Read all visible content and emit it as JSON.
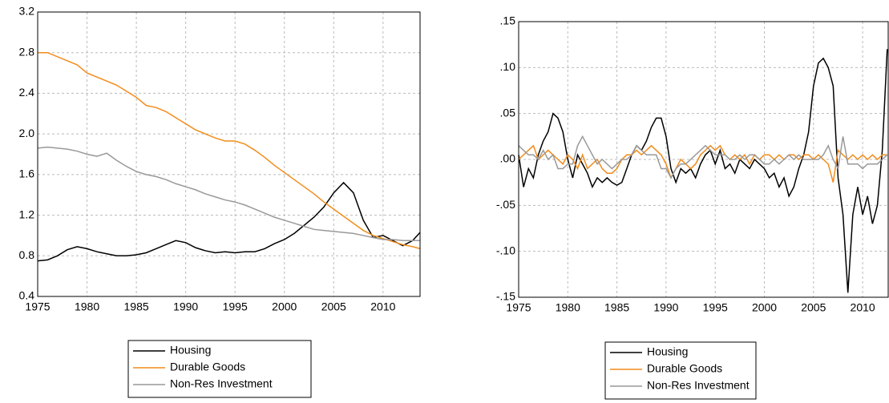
{
  "chart_data": [
    {
      "type": "line",
      "x": [
        1975,
        1976,
        1977,
        1978,
        1979,
        1980,
        1981,
        1982,
        1983,
        1984,
        1985,
        1986,
        1987,
        1988,
        1989,
        1990,
        1991,
        1992,
        1993,
        1994,
        1995,
        1996,
        1997,
        1998,
        1999,
        2000,
        2001,
        2002,
        2003,
        2004,
        2005,
        2006,
        2007,
        2008,
        2009,
        2010,
        2011,
        2012,
        2013,
        2013.75
      ],
      "xlim": [
        1975,
        2013.75
      ],
      "xticks": [
        1975,
        1980,
        1985,
        1990,
        1995,
        2000,
        2005,
        2010
      ],
      "ylim": [
        0.4,
        3.2
      ],
      "yticks": [
        {
          "value": 3.2,
          "label": "3.2"
        },
        {
          "value": 2.8,
          "label": "2.8"
        },
        {
          "value": 2.4,
          "label": "2.4"
        },
        {
          "value": 2,
          "label": "2.0"
        },
        {
          "value": 1.6,
          "label": "1.6"
        },
        {
          "value": 1.2,
          "label": "1.2"
        },
        {
          "value": 0.8,
          "label": "0.8"
        },
        {
          "value": 0.4,
          "label": "0.4"
        }
      ],
      "grid": true,
      "series": [
        {
          "name": "Housing",
          "color": "#000000",
          "values": [
            0.75,
            0.76,
            0.8,
            0.86,
            0.89,
            0.87,
            0.84,
            0.82,
            0.8,
            0.8,
            0.81,
            0.83,
            0.87,
            0.91,
            0.95,
            0.93,
            0.88,
            0.85,
            0.83,
            0.84,
            0.83,
            0.84,
            0.84,
            0.87,
            0.92,
            0.96,
            1.02,
            1.1,
            1.18,
            1.28,
            1.42,
            1.52,
            1.42,
            1.15,
            0.98,
            1.0,
            0.95,
            0.9,
            0.95,
            1.03
          ]
        },
        {
          "name": "Durable Goods",
          "color": "#f28c1c",
          "values": [
            2.8,
            2.8,
            2.76,
            2.72,
            2.68,
            2.6,
            2.56,
            2.52,
            2.48,
            2.42,
            2.36,
            2.28,
            2.26,
            2.22,
            2.16,
            2.1,
            2.04,
            2.0,
            1.96,
            1.93,
            1.93,
            1.9,
            1.84,
            1.77,
            1.69,
            1.62,
            1.55,
            1.48,
            1.41,
            1.33,
            1.26,
            1.19,
            1.12,
            1.05,
            1.0,
            0.97,
            0.94,
            0.91,
            0.89,
            0.87
          ]
        },
        {
          "name": "Non-Res Investment",
          "color": "#999999",
          "values": [
            1.86,
            1.87,
            1.86,
            1.85,
            1.83,
            1.8,
            1.78,
            1.81,
            1.74,
            1.68,
            1.63,
            1.6,
            1.58,
            1.55,
            1.51,
            1.48,
            1.45,
            1.41,
            1.38,
            1.35,
            1.33,
            1.3,
            1.26,
            1.22,
            1.18,
            1.15,
            1.12,
            1.09,
            1.06,
            1.05,
            1.04,
            1.03,
            1.02,
            1.0,
            0.98,
            0.96,
            0.96,
            0.95,
            0.95,
            0.95
          ]
        }
      ]
    },
    {
      "type": "line",
      "x": [
        1975,
        1975.5,
        1976,
        1976.5,
        1977,
        1977.5,
        1978,
        1978.5,
        1979,
        1979.5,
        1980,
        1980.5,
        1981,
        1981.5,
        1982,
        1982.5,
        1983,
        1983.5,
        1984,
        1984.5,
        1985,
        1985.5,
        1986,
        1986.5,
        1987,
        1987.5,
        1988,
        1988.5,
        1989,
        1989.5,
        1990,
        1990.5,
        1991,
        1991.5,
        1992,
        1992.5,
        1993,
        1993.5,
        1994,
        1994.5,
        1995,
        1995.5,
        1996,
        1996.5,
        1997,
        1997.5,
        1998,
        1998.5,
        1999,
        1999.5,
        2000,
        2000.5,
        2001,
        2001.5,
        2002,
        2002.5,
        2003,
        2003.5,
        2004,
        2004.5,
        2005,
        2005.5,
        2006,
        2006.5,
        2007,
        2007.5,
        2008,
        2008.5,
        2009,
        2009.5,
        2010,
        2010.5,
        2011,
        2011.5,
        2012,
        2012.5
      ],
      "xlim": [
        1975,
        2012.6
      ],
      "xticks": [
        1975,
        1980,
        1985,
        1990,
        1995,
        2000,
        2005,
        2010
      ],
      "ylim": [
        -0.15,
        0.15
      ],
      "yticks": [
        {
          "value": 0.15,
          "label": ".15"
        },
        {
          "value": 0.1,
          "label": ".10"
        },
        {
          "value": 0.05,
          "label": ".05"
        },
        {
          "value": 0,
          "label": ".00"
        },
        {
          "value": -0.05,
          "label": "-.05"
        },
        {
          "value": -0.1,
          "label": "-.10"
        },
        {
          "value": -0.15,
          "label": "-.15"
        }
      ],
      "grid": true,
      "series": [
        {
          "name": "Housing",
          "color": "#000000",
          "values": [
            0.005,
            -0.03,
            -0.01,
            -0.02,
            0.005,
            0.02,
            0.03,
            0.05,
            0.045,
            0.03,
            0,
            -0.02,
            0.005,
            -0.005,
            -0.015,
            -0.03,
            -0.02,
            -0.025,
            -0.02,
            -0.025,
            -0.028,
            -0.025,
            -0.01,
            0.005,
            0.015,
            0.01,
            0.02,
            0.035,
            0.045,
            0.045,
            0.025,
            -0.01,
            -0.025,
            -0.01,
            -0.015,
            -0.01,
            -0.02,
            -0.005,
            0.005,
            0.01,
            -0.005,
            0.01,
            -0.01,
            -0.005,
            -0.015,
            0,
            -0.005,
            -0.01,
            0,
            -0.005,
            -0.01,
            -0.02,
            -0.015,
            -0.03,
            -0.02,
            -0.04,
            -0.03,
            -0.01,
            0.005,
            0.03,
            0.08,
            0.105,
            0.11,
            0.1,
            0.08,
            -0.02,
            -0.06,
            -0.145,
            -0.06,
            -0.03,
            -0.06,
            -0.04,
            -0.07,
            -0.05,
            0.01,
            0.12
          ]
        },
        {
          "name": "Durable Goods",
          "color": "#f28c1c",
          "values": [
            0,
            0.005,
            0.01,
            0.015,
            0,
            0.005,
            0.01,
            0.005,
            0,
            -0.005,
            0.005,
            0,
            -0.01,
            0.005,
            -0.01,
            -0.005,
            0,
            -0.01,
            -0.015,
            -0.015,
            -0.01,
            0,
            0.005,
            0.005,
            0.01,
            0.005,
            0.01,
            0.015,
            0.01,
            0.005,
            -0.005,
            -0.02,
            -0.01,
            0,
            -0.005,
            -0.01,
            -0.005,
            0.005,
            0.01,
            0.015,
            0.01,
            0.015,
            0.005,
            0,
            0.005,
            0,
            0.005,
            -0.005,
            0.005,
            0,
            0.005,
            0.005,
            0,
            0.005,
            0,
            0.005,
            0.005,
            0,
            0.005,
            0.005,
            0,
            0.005,
            0,
            -0.005,
            -0.025,
            0.01,
            0.005,
            0,
            0.005,
            0,
            0.005,
            0,
            0.005,
            0,
            0.005,
            0.005
          ]
        },
        {
          "name": "Non-Res Investment",
          "color": "#999999",
          "values": [
            0.015,
            0.01,
            0.005,
            0.005,
            0,
            0.01,
            0,
            0.005,
            -0.01,
            -0.01,
            -0.005,
            -0.005,
            0.015,
            0.025,
            0.015,
            0.005,
            -0.005,
            0,
            -0.005,
            -0.01,
            -0.005,
            0,
            0,
            0.005,
            0.015,
            0.01,
            0.005,
            0.005,
            0.005,
            -0.01,
            -0.01,
            -0.02,
            -0.01,
            -0.005,
            -0.005,
            0,
            0.005,
            0.01,
            0.015,
            0.01,
            0.005,
            0.005,
            0.005,
            0,
            0,
            0.005,
            0,
            0.005,
            0.005,
            0,
            -0.005,
            -0.005,
            0,
            -0.005,
            0,
            0.005,
            0,
            0.005,
            0,
            0,
            0,
            0,
            0.005,
            0.015,
            0,
            -0.01,
            0.025,
            -0.005,
            -0.005,
            -0.005,
            -0.01,
            -0.005,
            -0.005,
            -0.005,
            0,
            0.005
          ]
        }
      ]
    }
  ]
}
